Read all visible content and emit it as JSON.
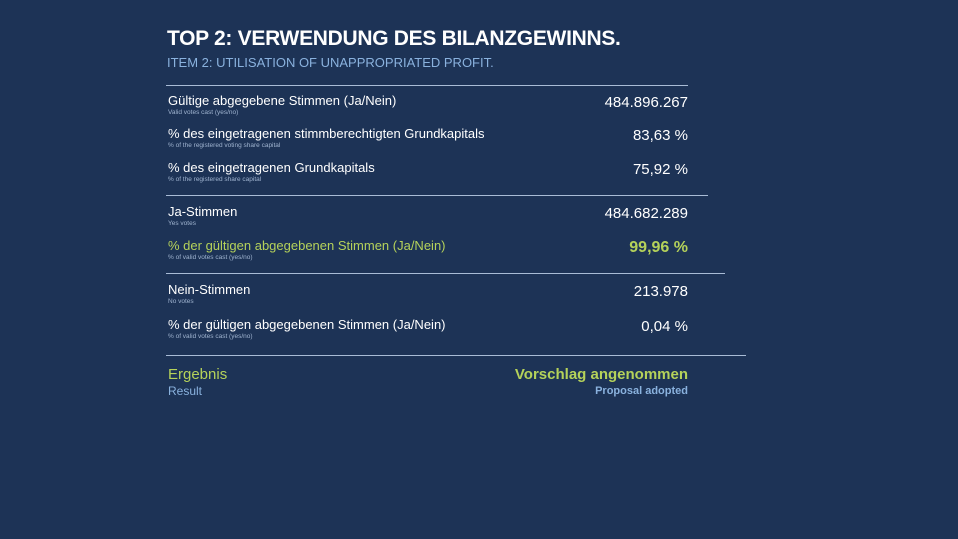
{
  "header": {
    "title": "TOP 2:  VERWENDUNG DES BILANZGEWINNS.",
    "subtitle": "ITEM 2:  UTILISATION OF UNAPPROPRIATED PROFIT."
  },
  "rows": [
    {
      "label": "Gültige abgegebene Stimmen (Ja/Nein)",
      "sublabel": "Valid votes cast (yes/no)",
      "value": "484.896.267"
    },
    {
      "label": "% des eingetragenen stimmberechtigten Grundkapitals",
      "sublabel": "% of the registered voting share capital",
      "value": "83,63 %"
    },
    {
      "label": "% des eingetragenen Grundkapitals",
      "sublabel": "% of the registered share capital",
      "value": "75,92 %"
    },
    {
      "label": "Ja-Stimmen",
      "sublabel": "Yes votes",
      "value": "484.682.289"
    },
    {
      "label": "% der gültigen abgegebenen Stimmen (Ja/Nein)",
      "sublabel": "% of valid votes cast (yes/no)",
      "value": "99,96 %"
    },
    {
      "label": "Nein-Stimmen",
      "sublabel": "No votes",
      "value": "213.978"
    },
    {
      "label": "% der gültigen abgegebenen Stimmen (Ja/Nein)",
      "sublabel": "% of valid votes cast (yes/no)",
      "value": "0,04 %"
    }
  ],
  "result": {
    "label": "Ergebnis",
    "sublabel": "Result",
    "value": "Vorschlag angenommen",
    "value_sub": "Proposal adopted"
  },
  "colors": {
    "background": "#1d3356",
    "accent_green": "#b5d25a",
    "accent_blue": "#8ab2de"
  }
}
